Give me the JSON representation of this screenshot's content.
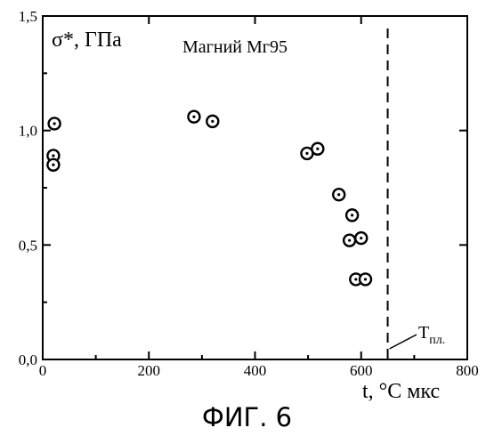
{
  "figure_caption": "ФИГ. 6",
  "chart_data": {
    "type": "scatter",
    "title": "Магний Мг95",
    "ylabel": "σ*, ГПа",
    "xlabel": "t, °C мкс",
    "xlim": [
      0,
      800
    ],
    "ylim": [
      0,
      1.5
    ],
    "x_ticks": [
      0,
      200,
      400,
      600,
      800
    ],
    "y_ticks": [
      0.0,
      0.5,
      1.0,
      1.5
    ],
    "x_tick_labels": [
      "0",
      "200",
      "400",
      "600",
      "800"
    ],
    "y_tick_labels": [
      "0,0",
      "0,5",
      "1,0",
      "1,5"
    ],
    "grid": false,
    "series": [
      {
        "points": [
          {
            "x": 22,
            "y": 1.03
          },
          {
            "x": 20,
            "y": 0.89
          },
          {
            "x": 20,
            "y": 0.85
          },
          {
            "x": 285,
            "y": 1.06
          },
          {
            "x": 320,
            "y": 1.04
          },
          {
            "x": 498,
            "y": 0.9
          },
          {
            "x": 518,
            "y": 0.92
          },
          {
            "x": 558,
            "y": 0.72
          },
          {
            "x": 583,
            "y": 0.63
          },
          {
            "x": 578,
            "y": 0.52
          },
          {
            "x": 600,
            "y": 0.53
          },
          {
            "x": 590,
            "y": 0.35
          },
          {
            "x": 608,
            "y": 0.35
          }
        ]
      }
    ],
    "annotations": {
      "melting_line_x": 650,
      "melting_label_main": "T",
      "melting_label_sub": "пл."
    }
  }
}
